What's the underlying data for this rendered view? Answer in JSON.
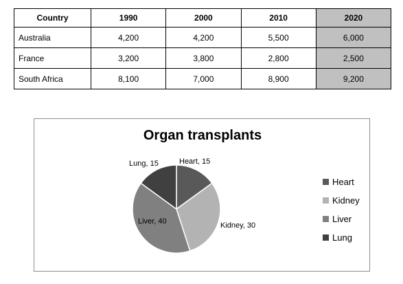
{
  "table": {
    "headers": [
      "Country",
      "1990",
      "2000",
      "2010",
      "2020"
    ],
    "rows": [
      {
        "country": "Australia",
        "values": [
          "4,200",
          "4,200",
          "5,500",
          "6,000"
        ]
      },
      {
        "country": "France",
        "values": [
          "3,200",
          "3,800",
          "2,800",
          "2,500"
        ]
      },
      {
        "country": "South Africa",
        "values": [
          "8,100",
          "7,000",
          "8,900",
          "9,200"
        ]
      }
    ],
    "highlighted_column": "2020"
  },
  "chart_data": [
    {
      "type": "table",
      "columns": [
        "Country",
        "1990",
        "2000",
        "2010",
        "2020"
      ],
      "rows": [
        [
          "Australia",
          4200,
          4200,
          5500,
          6000
        ],
        [
          "France",
          3200,
          3800,
          2800,
          2500
        ],
        [
          "South Africa",
          8100,
          7000,
          8900,
          9200
        ]
      ]
    },
    {
      "type": "pie",
      "title": "Organ transplants",
      "categories": [
        "Heart",
        "Kidney",
        "Liver",
        "Lung"
      ],
      "values": [
        15,
        30,
        40,
        15
      ],
      "data_labels": [
        "Heart, 15",
        "Kidney, 30",
        "Liver, 40",
        "Lung, 15"
      ],
      "colors": [
        "#595959",
        "#b3b3b3",
        "#808080",
        "#404040"
      ],
      "legend": "right"
    }
  ]
}
